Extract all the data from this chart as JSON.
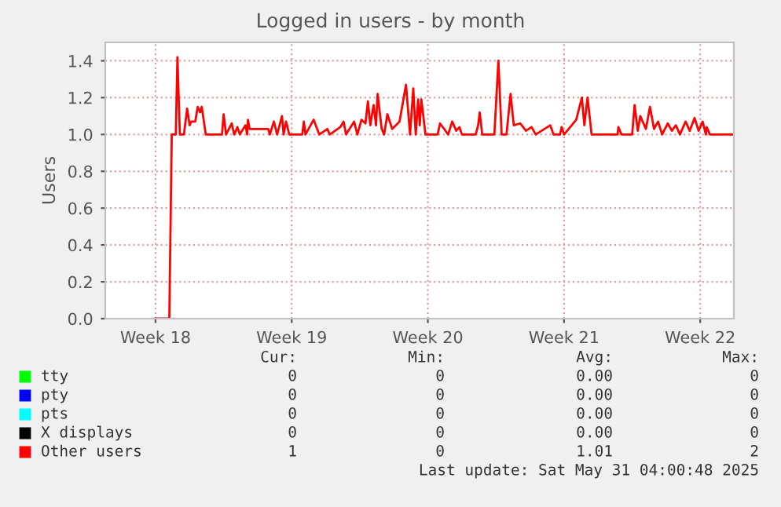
{
  "chart_data": {
    "type": "line",
    "title": "Logged in users - by month",
    "ylabel": "Users",
    "xlim": [
      "2025-04-28T22:00",
      "2025-05-31T05:30"
    ],
    "xticks": [
      {
        "value": "2025-05-01T12:00",
        "label": "Week 18"
      },
      {
        "value": "2025-05-08T12:00",
        "label": "Week 19"
      },
      {
        "value": "2025-05-15T12:00",
        "label": "Week 20"
      },
      {
        "value": "2025-05-22T12:00",
        "label": "Week 21"
      },
      {
        "value": "2025-05-29T12:00",
        "label": "Week 22"
      }
    ],
    "ylim": [
      0,
      1.5
    ],
    "yticks": [
      {
        "value": 0,
        "label": "0.0"
      },
      {
        "value": 0.2,
        "label": "0.2"
      },
      {
        "value": 0.4,
        "label": "0.4"
      },
      {
        "value": 0.6,
        "label": "0.6"
      },
      {
        "value": 0.8,
        "label": "0.8"
      },
      {
        "value": 1.0,
        "label": "1.0"
      },
      {
        "value": 1.2,
        "label": "1.2"
      },
      {
        "value": 1.4,
        "label": "1.4"
      }
    ],
    "grid": true,
    "legend": "bottom left",
    "series": [
      {
        "name": "tty",
        "color": "#00ff00"
      },
      {
        "name": "pty",
        "color": "#0000ff"
      },
      {
        "name": "pts",
        "color": "#00ffff"
      },
      {
        "name": "X displays",
        "color": "#000000"
      },
      {
        "name": "Other users",
        "color": "#ff0000",
        "x": [
          "2025-05-01T12:00",
          "2025-05-02T05:00",
          "2025-05-02T08:00",
          "2025-05-02T13:00",
          "2025-05-02T15:00",
          "2025-05-02T18:00",
          "2025-05-02T23:00",
          "2025-05-03T03:00",
          "2025-05-03T06:00",
          "2025-05-03T08:00",
          "2025-05-03T13:00",
          "2025-05-03T16:00",
          "2025-05-03T19:00",
          "2025-05-03T21:00",
          "2025-05-04T02:00",
          "2025-05-04T22:00",
          "2025-05-05T00:00",
          "2025-05-05T03:00",
          "2025-05-05T10:00",
          "2025-05-05T13:00",
          "2025-05-05T17:00",
          "2025-05-05T20:00",
          "2025-05-06T03:00",
          "2025-05-06T05:00",
          "2025-05-06T06:00",
          "2025-05-06T08:00",
          "2025-05-07T07:00",
          "2025-05-07T09:00",
          "2025-05-07T14:00",
          "2025-05-07T18:00",
          "2025-05-08T00:00",
          "2025-05-08T02:00",
          "2025-05-08T05:00",
          "2025-05-08T09:00",
          "2025-05-09T01:00",
          "2025-05-09T03:00",
          "2025-05-09T05:00",
          "2025-05-09T15:00",
          "2025-05-09T22:00",
          "2025-05-10T08:00",
          "2025-05-10T11:00",
          "2025-05-11T00:00",
          "2025-05-11T04:00",
          "2025-05-11T07:00",
          "2025-05-11T17:00",
          "2025-05-11T21:00",
          "2025-05-12T02:00",
          "2025-05-12T07:00",
          "2025-05-12T10:00",
          "2025-05-12T13:00",
          "2025-05-12T17:00",
          "2025-05-12T20:00",
          "2025-05-12T22:00",
          "2025-05-13T03:00",
          "2025-05-13T06:00",
          "2025-05-13T10:00",
          "2025-05-13T16:00",
          "2025-05-14T01:00",
          "2025-05-14T09:00",
          "2025-05-14T14:00",
          "2025-05-14T18:00",
          "2025-05-14T21:00",
          "2025-05-15T00:00",
          "2025-05-15T02:00",
          "2025-05-15T04:00",
          "2025-05-15T09:00",
          "2025-05-16T00:00",
          "2025-05-16T03:00",
          "2025-05-16T08:00",
          "2025-05-16T13:00",
          "2025-05-16T18:00",
          "2025-05-16T23:00",
          "2025-05-17T03:00",
          "2025-05-17T06:00",
          "2025-05-17T23:00",
          "2025-05-18T02:00",
          "2025-05-18T04:00",
          "2025-05-18T07:00",
          "2025-05-18T22:00",
          "2025-05-19T03:00",
          "2025-05-19T07:00",
          "2025-05-19T13:00",
          "2025-05-19T18:00",
          "2025-05-19T22:00",
          "2025-05-20T06:00",
          "2025-05-20T13:00",
          "2025-05-20T20:00",
          "2025-05-21T01:00",
          "2025-05-21T19:00",
          "2025-05-21T23:00",
          "2025-05-22T07:00",
          "2025-05-22T09:00",
          "2025-05-22T12:00",
          "2025-05-23T03:00",
          "2025-05-23T10:00",
          "2025-05-23T13:00",
          "2025-05-23T17:00",
          "2025-05-23T22:00",
          "2025-05-25T06:00",
          "2025-05-25T07:00",
          "2025-05-25T11:00",
          "2025-05-26T00:00",
          "2025-05-26T03:00",
          "2025-05-26T07:00",
          "2025-05-26T10:00",
          "2025-05-26T17:00",
          "2025-05-26T22:00",
          "2025-05-27T03:00",
          "2025-05-27T08:00",
          "2025-05-27T13:00",
          "2025-05-27T20:00",
          "2025-05-28T01:00",
          "2025-05-28T06:00",
          "2025-05-28T11:00",
          "2025-05-28T18:00",
          "2025-05-28T23:00",
          "2025-05-29T05:00",
          "2025-05-29T10:00",
          "2025-05-29T15:00",
          "2025-05-29T19:00",
          "2025-05-29T20:00",
          "2025-05-30T00:00",
          "2025-05-31T04:00"
        ],
        "values": [
          0,
          0,
          1.0,
          1.0,
          1.42,
          1.0,
          1.0,
          1.14,
          1.05,
          1.07,
          1.07,
          1.15,
          1.12,
          1.15,
          1.0,
          1.0,
          1.11,
          1.0,
          1.06,
          1.0,
          1.04,
          1.0,
          1.05,
          1.0,
          1.08,
          1.03,
          1.03,
          1.0,
          1.07,
          1.0,
          1.1,
          1.0,
          1.07,
          1.0,
          1.0,
          1.07,
          1.0,
          1.08,
          1.0,
          1.03,
          1.0,
          1.04,
          1.07,
          1.0,
          1.07,
          1.0,
          1.08,
          1.06,
          1.18,
          1.05,
          1.16,
          1.05,
          1.22,
          1.03,
          1.0,
          1.11,
          1.03,
          1.07,
          1.27,
          1.0,
          1.25,
          1.0,
          1.19,
          1.05,
          1.19,
          1.0,
          1.0,
          1.06,
          1.03,
          1.0,
          1.07,
          1.02,
          1.04,
          1.0,
          1.0,
          1.05,
          1.12,
          1.0,
          1.0,
          1.4,
          1.0,
          1.0,
          1.22,
          1.05,
          1.06,
          1.02,
          1.04,
          1.0,
          1.05,
          1.0,
          1.0,
          1.04,
          1.0,
          1.08,
          1.2,
          1.05,
          1.2,
          1.0,
          1.0,
          1.04,
          1.0,
          1.0,
          1.16,
          1.02,
          1.1,
          1.03,
          1.15,
          1.03,
          1.07,
          1.0,
          1.06,
          1.02,
          1.05,
          1.0,
          1.07,
          1.02,
          1.09,
          1.02,
          1.07,
          1.0,
          1.04,
          1.0,
          1.0
        ]
      }
    ],
    "annotations": [
      "Cur:",
      "Min:",
      "Avg:",
      "Max:",
      "0",
      "0",
      "0.00",
      "0",
      "0",
      "0",
      "0.00",
      "0",
      "0",
      "0",
      "0.00",
      "0",
      "0",
      "0",
      "0.00",
      "0",
      "1",
      "0",
      "1.01",
      "2",
      "Last update: Sat May 31 04:00:48 2025"
    ]
  }
}
